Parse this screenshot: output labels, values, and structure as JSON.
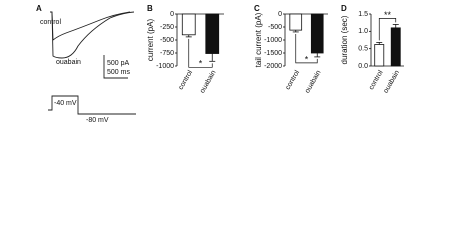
{
  "panel_labels": [
    "A",
    "B",
    "C",
    "D"
  ],
  "panel_a": {
    "traces": [
      "control",
      "ouabain"
    ],
    "scale_current": "500 pA",
    "scale_time": "500 ms",
    "step_start": "-40 mV",
    "step_end": "-80 mV"
  },
  "chart_data": [
    {
      "type": "bar",
      "ylabel": "current (pA)",
      "categories": [
        "control",
        "ouabain"
      ],
      "values": [
        -400,
        -760
      ],
      "errors": [
        40,
        150
      ],
      "colors": [
        "#ffffff",
        "#111111"
      ],
      "ylim": [
        -1000,
        0
      ],
      "yticks": [
        0,
        -250,
        -500,
        -750,
        -1000
      ],
      "significance": "*"
    },
    {
      "type": "bar",
      "ylabel": "tail current (pA)",
      "categories": [
        "control",
        "ouabain"
      ],
      "values": [
        -620,
        -1500
      ],
      "errors": [
        70,
        150
      ],
      "colors": [
        "#ffffff",
        "#111111"
      ],
      "ylim": [
        -2000,
        0
      ],
      "yticks": [
        0,
        -500,
        -1000,
        -1500,
        -2000
      ],
      "significance": "*"
    },
    {
      "type": "bar",
      "ylabel": "duration (sec)",
      "categories": [
        "control",
        "ouabain"
      ],
      "values": [
        0.62,
        1.1
      ],
      "errors": [
        0.06,
        0.1
      ],
      "colors": [
        "#ffffff",
        "#111111"
      ],
      "ylim": [
        0,
        1.5
      ],
      "yticks": [
        {
          "value": 0,
          "label": "0.0"
        },
        {
          "value": 0.5,
          "label": "0.5"
        },
        {
          "value": 1,
          "label": "1.0"
        },
        {
          "value": 1.5,
          "label": "1.5"
        }
      ],
      "significance": "**"
    }
  ]
}
